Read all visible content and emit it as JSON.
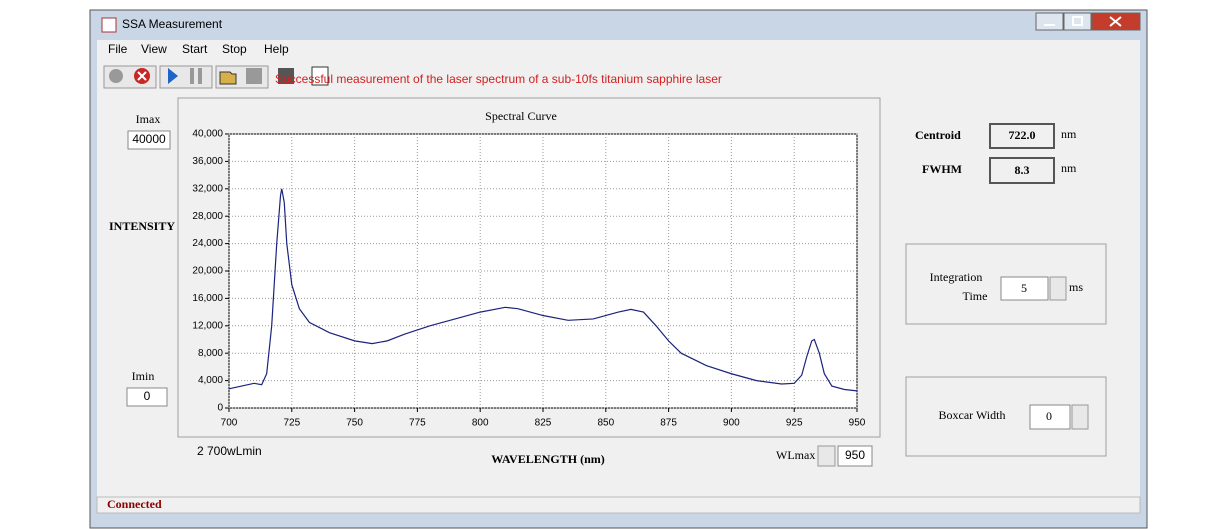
{
  "window": {
    "title": "SSA Measurement",
    "menu": [
      "File",
      "View",
      "Start",
      "Stop",
      "Help"
    ]
  },
  "caption": "Successful measurement of the laser spectrum of a sub-10fs titanium sapphire laser",
  "left_panel": {
    "imax_label": "Imax",
    "imax_value": "40000",
    "intensity_label": "INTENSITY",
    "imin_label": "Imin",
    "imin_value": "0"
  },
  "chart_data": {
    "type": "line",
    "title": "Spectral Curve",
    "x_label": "WAVELENGTH (nm)",
    "x": [
      700,
      705,
      710,
      713,
      715,
      717,
      719,
      720.5,
      721,
      722,
      723,
      725,
      728,
      732,
      740,
      750,
      757,
      763,
      770,
      780,
      790,
      800,
      810,
      815,
      825,
      835,
      845,
      855,
      860,
      865,
      870,
      875,
      880,
      890,
      900,
      910,
      920,
      925,
      928,
      930,
      932,
      933,
      935,
      937,
      940,
      945,
      950
    ],
    "values": [
      2800,
      3200,
      3600,
      3400,
      5000,
      12000,
      24000,
      31000,
      32000,
      30000,
      24000,
      18000,
      14500,
      12500,
      11000,
      9800,
      9400,
      9800,
      10800,
      12000,
      13000,
      14000,
      14700,
      14500,
      13500,
      12800,
      13000,
      14000,
      14400,
      14000,
      12000,
      9800,
      8000,
      6200,
      5000,
      4000,
      3500,
      3600,
      4800,
      7500,
      9800,
      10000,
      8000,
      5000,
      3200,
      2700,
      2500
    ],
    "color": "#1a237e",
    "xlim": [
      700,
      950
    ],
    "xticks": [
      700,
      725,
      750,
      775,
      800,
      825,
      850,
      875,
      900,
      925,
      950
    ],
    "ylim": [
      0,
      40000
    ],
    "yticks": [
      0,
      {
        "value": 4000,
        "label": "4,000"
      },
      {
        "value": 8000,
        "label": "8,000"
      },
      {
        "value": 12000,
        "label": "12,000"
      },
      {
        "value": 16000,
        "label": "16,000"
      },
      {
        "value": 20000,
        "label": "20,000"
      },
      {
        "value": 24000,
        "label": "24,000"
      },
      {
        "value": 28000,
        "label": "28,000"
      },
      {
        "value": 32000,
        "label": "32,000"
      },
      {
        "value": 36000,
        "label": "36,000"
      },
      {
        "value": 40000,
        "label": "40,000"
      }
    ],
    "grid": true
  },
  "bottom": {
    "wlmin_text": "2 700wLmin",
    "wlmax_label": "WLmax",
    "wlmax_value": "950"
  },
  "results": {
    "centroid_label": "Centroid",
    "centroid_value": "722.0",
    "centroid_unit": "nm",
    "fwhm_label": "FWHM",
    "fwhm_value": "8.3",
    "fwhm_unit": "nm"
  },
  "integration": {
    "label_line1": "Integration",
    "label_line2": "Time",
    "value": "5",
    "unit": "ms"
  },
  "boxcar": {
    "label": "Boxcar Width",
    "value": "0"
  },
  "status": "Connected"
}
